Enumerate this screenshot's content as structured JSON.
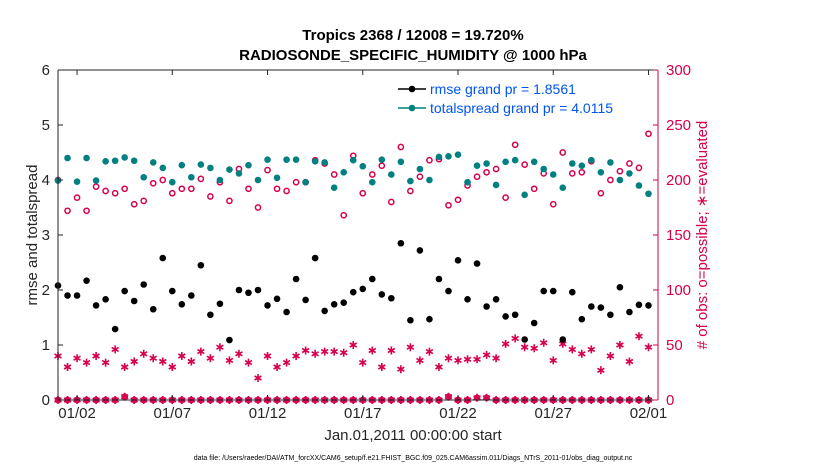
{
  "chart_data": {
    "type": "scatter",
    "title": "Tropics 2368 / 12008 = 19.720%",
    "subtitle": "RADIOSONDE_SPECIFIC_HUMIDITY @ 1000 hPa",
    "xlabel": "Jan.01,2011 00:00:00 start",
    "ylabel_left": "rmse and totalspread",
    "ylabel_right": "# of obs: o=possible; ∗=evaluated",
    "xlim": [
      0,
      31.5
    ],
    "ylim_left": [
      0,
      6
    ],
    "ylim_right": [
      0,
      300
    ],
    "xticks": [
      1,
      6,
      11,
      16,
      21,
      26,
      31
    ],
    "xtick_labels": [
      "01/02",
      "01/07",
      "01/12",
      "01/17",
      "01/22",
      "01/27",
      "02/01"
    ],
    "yticks_left": [
      0,
      1,
      2,
      3,
      4,
      5,
      6
    ],
    "yticks_right": [
      0,
      50,
      100,
      150,
      200,
      250,
      300
    ],
    "colors": {
      "rmse": "#000000",
      "spread": "#008080",
      "obs": "#d6004e",
      "legend_text": "#0055ee"
    },
    "x": [
      0.0,
      0.5,
      1.0,
      1.5,
      2.0,
      2.5,
      3.0,
      3.5,
      4.0,
      4.5,
      5.0,
      5.5,
      6.0,
      6.5,
      7.0,
      7.5,
      8.0,
      8.5,
      9.0,
      9.5,
      10.0,
      10.5,
      11.0,
      11.5,
      12.0,
      12.5,
      13.0,
      13.5,
      14.0,
      14.5,
      15.0,
      15.5,
      16.0,
      16.5,
      17.0,
      17.5,
      18.0,
      18.5,
      19.0,
      19.5,
      20.0,
      20.5,
      21.0,
      21.5,
      22.0,
      22.5,
      23.0,
      23.5,
      24.0,
      24.5,
      25.0,
      25.5,
      26.0,
      26.5,
      27.0,
      27.5,
      28.0,
      28.5,
      29.0,
      29.5,
      30.0,
      30.5,
      31.0
    ],
    "series": [
      {
        "name": "rmse grand pr = 1.8561",
        "axis": "left",
        "marker": "filled-circle",
        "values": [
          2.08,
          1.9,
          1.9,
          2.17,
          1.72,
          1.83,
          1.29,
          1.98,
          1.8,
          2.1,
          1.65,
          2.58,
          1.98,
          1.74,
          1.9,
          2.45,
          1.55,
          1.75,
          1.09,
          2.0,
          1.95,
          2.0,
          1.72,
          1.84,
          1.6,
          2.2,
          1.82,
          2.58,
          1.62,
          1.74,
          1.77,
          1.96,
          2.02,
          2.2,
          1.92,
          1.85,
          2.85,
          1.45,
          2.72,
          1.47,
          2.2,
          1.98,
          2.54,
          1.83,
          2.48,
          1.7,
          1.83,
          1.52,
          1.55,
          1.1,
          1.4,
          1.98,
          1.98,
          1.1,
          1.96,
          1.47,
          1.7,
          1.68,
          1.55,
          2.05,
          1.6,
          1.73,
          1.72
        ]
      },
      {
        "name": "totalspread grand pr = 4.0115",
        "axis": "left",
        "marker": "filled-circle",
        "values": [
          3.99,
          4.4,
          3.97,
          4.4,
          3.99,
          4.34,
          4.35,
          4.41,
          4.35,
          4.05,
          4.32,
          4.22,
          3.96,
          4.27,
          4.05,
          4.28,
          4.22,
          4.0,
          4.19,
          4.12,
          4.27,
          4.0,
          4.37,
          4.04,
          4.37,
          4.37,
          3.96,
          4.34,
          4.32,
          3.86,
          4.14,
          4.36,
          4.25,
          3.96,
          4.37,
          4.1,
          4.33,
          3.98,
          4.2,
          4.0,
          4.42,
          4.43,
          4.46,
          3.96,
          4.26,
          4.3,
          3.91,
          4.33,
          4.36,
          3.73,
          4.33,
          4.2,
          4.1,
          3.86,
          4.3,
          4.26,
          4.36,
          4.14,
          4.32,
          4.0,
          4.12,
          3.9,
          3.75
        ]
      },
      {
        "name": "# of obs possible",
        "axis": "right",
        "marker": "open-circle",
        "values": [
          200,
          172,
          184,
          172,
          194,
          190,
          188,
          192,
          178,
          181,
          197,
          200,
          188,
          192,
          192,
          201,
          185,
          198,
          181,
          210,
          192,
          175,
          209,
          192,
          190,
          198,
          198,
          218,
          215,
          205,
          168,
          222,
          188,
          205,
          213,
          180,
          230,
          190,
          203,
          218,
          219,
          177,
          182,
          195,
          203,
          207,
          210,
          184,
          232,
          214,
          192,
          206,
          178,
          225,
          206,
          207,
          217,
          188,
          200,
          208,
          215,
          211,
          242
        ]
      },
      {
        "name": "# of obs evaluated",
        "axis": "right",
        "marker": "asterisk",
        "values": [
          40,
          30,
          38,
          34,
          40,
          34,
          46,
          30,
          35,
          42,
          38,
          35,
          30,
          40,
          35,
          44,
          38,
          48,
          36,
          42,
          34,
          20,
          40,
          30,
          34,
          40,
          45,
          42,
          44,
          44,
          43,
          50,
          34,
          45,
          30,
          45,
          28,
          48,
          36,
          44,
          30,
          38,
          36,
          37,
          37,
          41,
          38,
          51,
          56,
          48,
          47,
          52,
          36,
          51,
          46,
          42,
          46,
          27,
          40,
          50,
          35,
          58,
          48
        ]
      }
    ],
    "obs_baseline_x": [
      0.0,
      0.5,
      1.0,
      1.5,
      2.0,
      2.5,
      3.0,
      3.5,
      4.0,
      4.5,
      5.0,
      5.5,
      6.0,
      6.5,
      7.0,
      7.5,
      8.0,
      8.5,
      9.0,
      9.5,
      10.0,
      10.5,
      11.0,
      11.5,
      12.0,
      12.5,
      13.0,
      13.5,
      14.0,
      14.5,
      15.0,
      15.5,
      16.0,
      16.5,
      17.0,
      17.5,
      18.0,
      18.5,
      19.0,
      19.5,
      20.0,
      20.5,
      21.0,
      21.5,
      22.0,
      22.5,
      23.0,
      23.5,
      24.0,
      24.5,
      25.0,
      25.5,
      26.0,
      26.5,
      27.0,
      27.5,
      28.0,
      28.5,
      29.0,
      29.5,
      30.0,
      30.5,
      31.0
    ],
    "obs_baseline_values": [
      0,
      0,
      0,
      0,
      0,
      0,
      0,
      3,
      0,
      0,
      0,
      0,
      0,
      0,
      0,
      0,
      0,
      0,
      0,
      0,
      0,
      0,
      0,
      0,
      0,
      0,
      0,
      0,
      0,
      0,
      0,
      0,
      0,
      0,
      0,
      0,
      0,
      0,
      0,
      0,
      0,
      3,
      0,
      0,
      2,
      2,
      0,
      0,
      0,
      0,
      0,
      0,
      0,
      0,
      0,
      0,
      0,
      0,
      0,
      0,
      0,
      0,
      0
    ],
    "legend": [
      {
        "label": "rmse grand pr = 1.8561",
        "series": 0
      },
      {
        "label": "totalspread grand pr = 4.0115",
        "series": 1
      }
    ],
    "legend_location": "top-right",
    "grid": false
  },
  "footer": "data file: /Users/raeder/DAI/ATM_forcXX/CAM6_setup/f.e21.FHIST_BGC.f09_025.CAM6assim.011/Diags_NTrS_2011-01/obs_diag_output.nc"
}
